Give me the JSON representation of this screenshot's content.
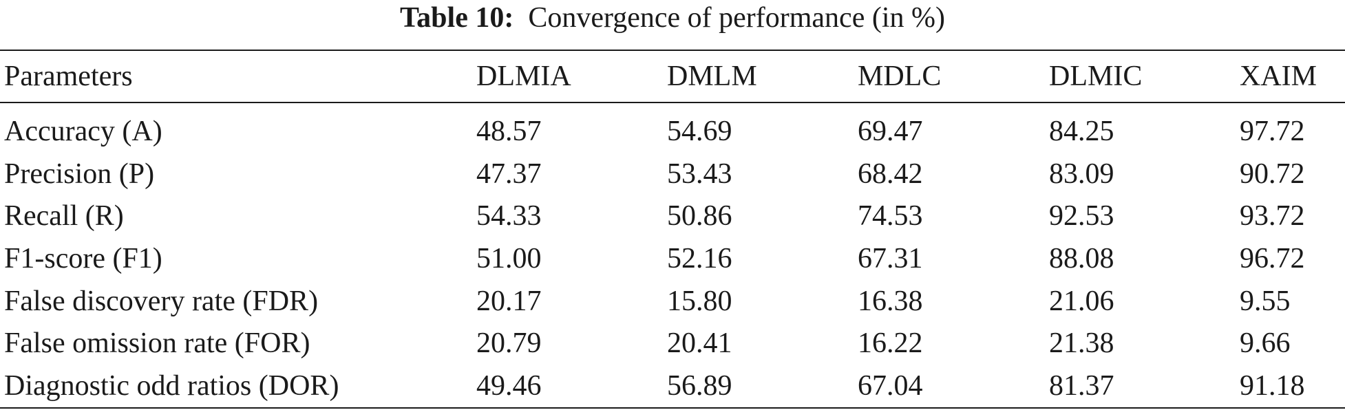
{
  "caption": {
    "label": "Table 10:",
    "text": "Convergence of performance (in %)"
  },
  "table": {
    "columns": [
      "Parameters",
      "DLMIA",
      "DMLM",
      "MDLC",
      "DLMIC",
      "XAIM"
    ],
    "rows": [
      [
        "Accuracy (A)",
        "48.57",
        "54.69",
        "69.47",
        "84.25",
        "97.72"
      ],
      [
        "Precision (P)",
        "47.37",
        "53.43",
        "68.42",
        "83.09",
        "90.72"
      ],
      [
        "Recall (R)",
        "54.33",
        "50.86",
        "74.53",
        "92.53",
        "93.72"
      ],
      [
        "F1-score (F1)",
        "51.00",
        "52.16",
        "67.31",
        "88.08",
        "96.72"
      ],
      [
        "False discovery rate (FDR)",
        "20.17",
        "15.80",
        "16.38",
        "21.06",
        "9.55"
      ],
      [
        "False omission rate (FOR)",
        "20.79",
        "20.41",
        "16.22",
        "21.38",
        "9.66"
      ],
      [
        "Diagnostic odd ratios (DOR)",
        "49.46",
        "56.89",
        "67.04",
        "81.37",
        "91.18"
      ]
    ]
  }
}
